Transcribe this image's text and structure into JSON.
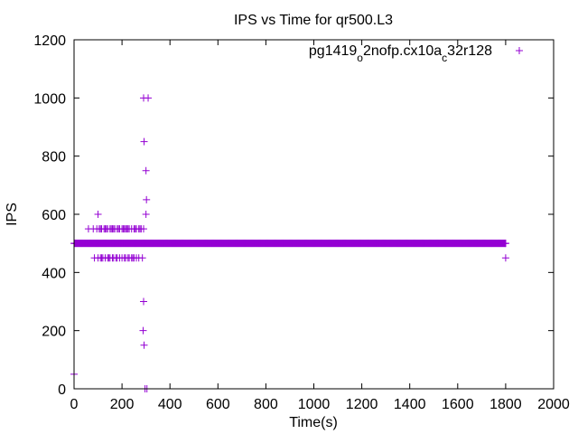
{
  "chart_data": {
    "type": "scatter",
    "title": "IPS vs Time for qr500.L3",
    "xlabel": "Time(s)",
    "ylabel": "IPS",
    "xlim": [
      0,
      2000
    ],
    "ylim": [
      0,
      1200
    ],
    "xticks": [
      "0",
      "200",
      "400",
      "600",
      "800",
      "1000",
      "1200",
      "1400",
      "1600",
      "1800",
      "2000"
    ],
    "yticks": [
      "0",
      "200",
      "400",
      "600",
      "800",
      "1000",
      "1200"
    ],
    "grid": false,
    "legend_position": "top-right",
    "color": "#9400d3",
    "series": [
      {
        "name_parts": [
          {
            "text": "pg1419",
            "sub": false
          },
          {
            "text": "o",
            "sub": true
          },
          {
            "text": "2nofp.cx10a",
            "sub": false
          },
          {
            "text": "c",
            "sub": true
          },
          {
            "text": "32r128",
            "sub": false
          }
        ],
        "runs": [
          {
            "y": 500,
            "x_start": 0,
            "x_end": 1800,
            "step": 2
          }
        ],
        "rows": [
          {
            "y": 550,
            "x": [
              60,
              80,
              95,
              105,
              110,
              115,
              125,
              130,
              135,
              140,
              150,
              155,
              160,
              165,
              170,
              180,
              185,
              190,
              200,
              205,
              210,
              215,
              220,
              225,
              230,
              240,
              250,
              255,
              260,
              270,
              275,
              280,
              290
            ]
          },
          {
            "y": 450,
            "x": [
              85,
              100,
              110,
              115,
              120,
              130,
              140,
              145,
              150,
              160,
              165,
              175,
              180,
              190,
              200,
              210,
              215,
              225,
              230,
              240,
              245,
              250,
              260,
              270,
              285
            ]
          }
        ],
        "points": [
          [
            0,
            50
          ],
          [
            100,
            600
          ],
          [
            290,
            1000
          ],
          [
            309,
            1000
          ],
          [
            292,
            850
          ],
          [
            300,
            750
          ],
          [
            302,
            650
          ],
          [
            300,
            600
          ],
          [
            290,
            300
          ],
          [
            288,
            200
          ],
          [
            292,
            150
          ],
          [
            296,
            0
          ],
          [
            304,
            0
          ],
          [
            1800,
            450
          ],
          [
            1800,
            500
          ]
        ]
      }
    ]
  }
}
